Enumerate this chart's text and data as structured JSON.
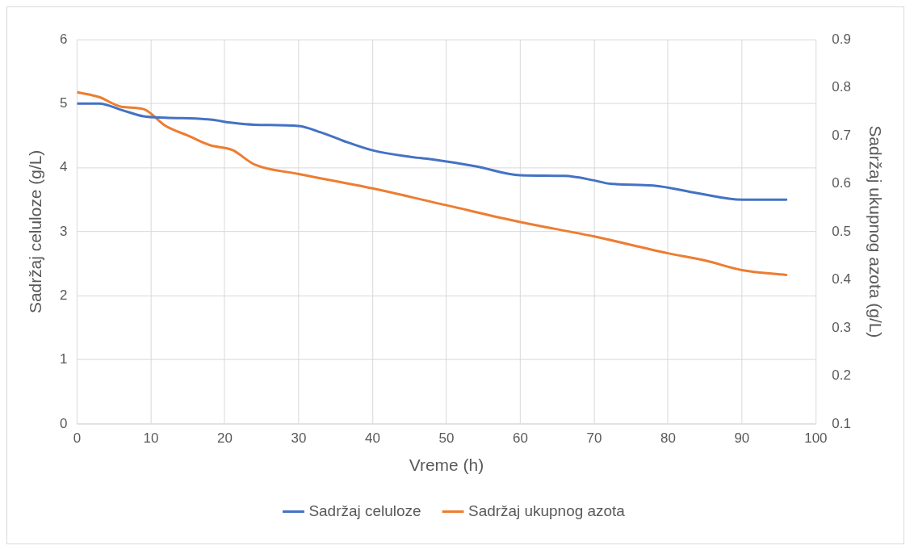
{
  "chart_data": {
    "type": "line",
    "xlabel": "Vreme (h)",
    "ylabel": "Sadržaj celuloze (g/L)",
    "y2label": "Sadržaj ukupnog azota (g/L)",
    "xlim": [
      0,
      100
    ],
    "xticks": [
      0,
      10,
      20,
      30,
      40,
      50,
      60,
      70,
      80,
      90,
      100
    ],
    "ylim": [
      0,
      6
    ],
    "yticks": [
      0,
      1,
      2,
      3,
      4,
      5,
      6
    ],
    "y2lim": [
      0.1,
      0.9
    ],
    "y2ticks": [
      0.1,
      0.2,
      0.3,
      0.4,
      0.5,
      0.6,
      0.7,
      0.8,
      0.9
    ],
    "grid": true,
    "legend": "bottom",
    "marker": "none",
    "line_style": "solid",
    "series": [
      {
        "name": "Sadržaj celuloze",
        "color": "#4472c4",
        "x": [
          0,
          3,
          6,
          9,
          12,
          18,
          21,
          24,
          30,
          33,
          36,
          40,
          45,
          48,
          54,
          60,
          66,
          70,
          72,
          78,
          84,
          90,
          93,
          96
        ],
        "values": [
          5.0,
          5.0,
          4.9,
          4.8,
          4.78,
          4.75,
          4.7,
          4.67,
          4.65,
          4.55,
          4.42,
          4.27,
          4.17,
          4.13,
          4.02,
          3.88,
          3.87,
          3.8,
          3.75,
          3.72,
          3.6,
          3.5,
          3.5,
          3.5
        ]
      },
      {
        "name": "Sadržaj ukupnog azota",
        "color": "#ed7d31",
        "axis": "y2",
        "x": [
          0,
          3,
          6,
          9,
          12,
          15,
          18,
          21,
          24,
          30,
          40,
          50,
          60,
          70,
          80,
          85,
          90,
          96
        ],
        "values": [
          0.79,
          0.78,
          0.76,
          0.755,
          0.72,
          0.7,
          0.68,
          0.67,
          0.64,
          0.62,
          0.59,
          0.555,
          0.52,
          0.49,
          0.455,
          0.44,
          0.42,
          0.41
        ]
      }
    ]
  }
}
